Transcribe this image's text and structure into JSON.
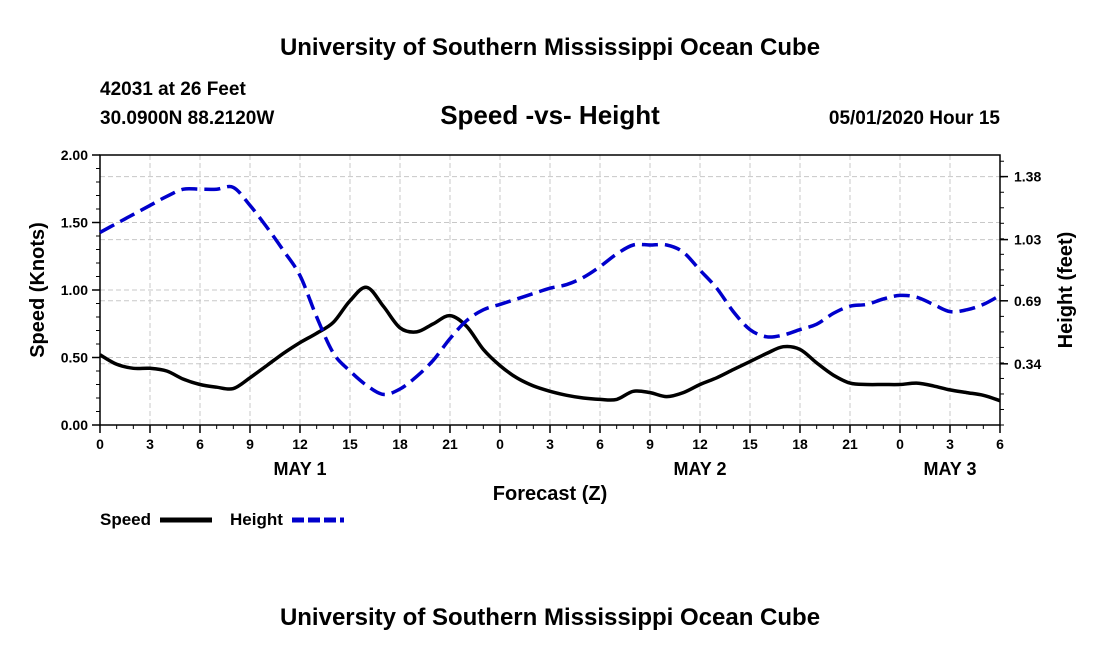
{
  "header": {
    "title": "University of Southern Mississippi Ocean Cube",
    "station": "42031 at 26 Feet",
    "coords": "30.0900N 88.2120W",
    "datetime": "05/01/2020 Hour 15",
    "footer_title": "University of Southern Mississippi Ocean Cube"
  },
  "chart_data": {
    "type": "line",
    "title": "Speed -vs- Height",
    "xlabel": "Forecast (Z)",
    "ylabel": "Speed (Knots)",
    "y2label": "Height (feet)",
    "x_range_hours": [
      0,
      54
    ],
    "x_ticks": [
      {
        "h": 0,
        "label": "0"
      },
      {
        "h": 3,
        "label": "3"
      },
      {
        "h": 6,
        "label": "6"
      },
      {
        "h": 9,
        "label": "9"
      },
      {
        "h": 12,
        "label": "12"
      },
      {
        "h": 15,
        "label": "15"
      },
      {
        "h": 18,
        "label": "18"
      },
      {
        "h": 21,
        "label": "21"
      },
      {
        "h": 24,
        "label": "0"
      },
      {
        "h": 27,
        "label": "3"
      },
      {
        "h": 30,
        "label": "6"
      },
      {
        "h": 33,
        "label": "9"
      },
      {
        "h": 36,
        "label": "12"
      },
      {
        "h": 39,
        "label": "15"
      },
      {
        "h": 42,
        "label": "18"
      },
      {
        "h": 45,
        "label": "21"
      },
      {
        "h": 48,
        "label": "0"
      },
      {
        "h": 51,
        "label": "3"
      },
      {
        "h": 54,
        "label": "6"
      }
    ],
    "date_labels": [
      {
        "h": 12,
        "label": "MAY 1"
      },
      {
        "h": 36,
        "label": "MAY 2"
      },
      {
        "h": 51,
        "label": "MAY 3"
      }
    ],
    "ylim": [
      0,
      2
    ],
    "y_ticks": [
      "0.00",
      "0.50",
      "1.00",
      "1.50",
      "2.00"
    ],
    "y2lim": [
      0,
      1.5
    ],
    "y2_ticks": [
      "0.34",
      "0.69",
      "1.03",
      "1.38"
    ],
    "grid": true,
    "series": [
      {
        "name": "Speed",
        "axis": "left",
        "color": "#000000",
        "style": "solid",
        "x": [
          0,
          1,
          2,
          3,
          4,
          5,
          6,
          7,
          8,
          9,
          10,
          11,
          12,
          13,
          14,
          15,
          16,
          17,
          18,
          19,
          20,
          21,
          22,
          23,
          24,
          25,
          26,
          27,
          28,
          29,
          30,
          31,
          32,
          33,
          34,
          35,
          36,
          37,
          38,
          39,
          40,
          41,
          42,
          43,
          44,
          45,
          46,
          47,
          48,
          49,
          50,
          51,
          52,
          53,
          54
        ],
        "values": [
          0.52,
          0.45,
          0.42,
          0.42,
          0.4,
          0.34,
          0.3,
          0.28,
          0.27,
          0.35,
          0.44,
          0.53,
          0.61,
          0.68,
          0.76,
          0.92,
          1.02,
          0.88,
          0.72,
          0.69,
          0.75,
          0.81,
          0.73,
          0.56,
          0.44,
          0.35,
          0.29,
          0.25,
          0.22,
          0.2,
          0.19,
          0.19,
          0.25,
          0.24,
          0.21,
          0.24,
          0.3,
          0.35,
          0.41,
          0.47,
          0.53,
          0.58,
          0.56,
          0.46,
          0.37,
          0.31,
          0.3,
          0.3,
          0.3,
          0.31,
          0.29,
          0.26,
          0.24,
          0.22,
          0.18
        ]
      },
      {
        "name": "Height",
        "axis": "right",
        "color": "#0000cc",
        "style": "dashed",
        "x": [
          0,
          1,
          2,
          3,
          4,
          5,
          6,
          7,
          8,
          9,
          10,
          11,
          12,
          13,
          14,
          15,
          16,
          17,
          18,
          19,
          20,
          21,
          22,
          23,
          24,
          25,
          26,
          27,
          28,
          29,
          30,
          31,
          32,
          33,
          34,
          35,
          36,
          37,
          38,
          39,
          40,
          41,
          42,
          43,
          44,
          45,
          46,
          47,
          48,
          49,
          50,
          51,
          52,
          53,
          54
        ],
        "values": [
          1.07,
          1.12,
          1.17,
          1.22,
          1.27,
          1.31,
          1.31,
          1.31,
          1.32,
          1.22,
          1.1,
          0.97,
          0.83,
          0.6,
          0.4,
          0.3,
          0.22,
          0.17,
          0.2,
          0.27,
          0.36,
          0.48,
          0.58,
          0.64,
          0.67,
          0.7,
          0.73,
          0.76,
          0.78,
          0.82,
          0.88,
          0.95,
          1.0,
          1.0,
          1.0,
          0.96,
          0.86,
          0.76,
          0.63,
          0.53,
          0.49,
          0.5,
          0.53,
          0.56,
          0.62,
          0.66,
          0.67,
          0.7,
          0.72,
          0.71,
          0.67,
          0.63,
          0.64,
          0.67,
          0.72
        ]
      }
    ],
    "legend": [
      {
        "label": "Speed",
        "color": "#000000",
        "style": "solid"
      },
      {
        "label": "Height",
        "color": "#0000cc",
        "style": "dashed"
      }
    ]
  }
}
